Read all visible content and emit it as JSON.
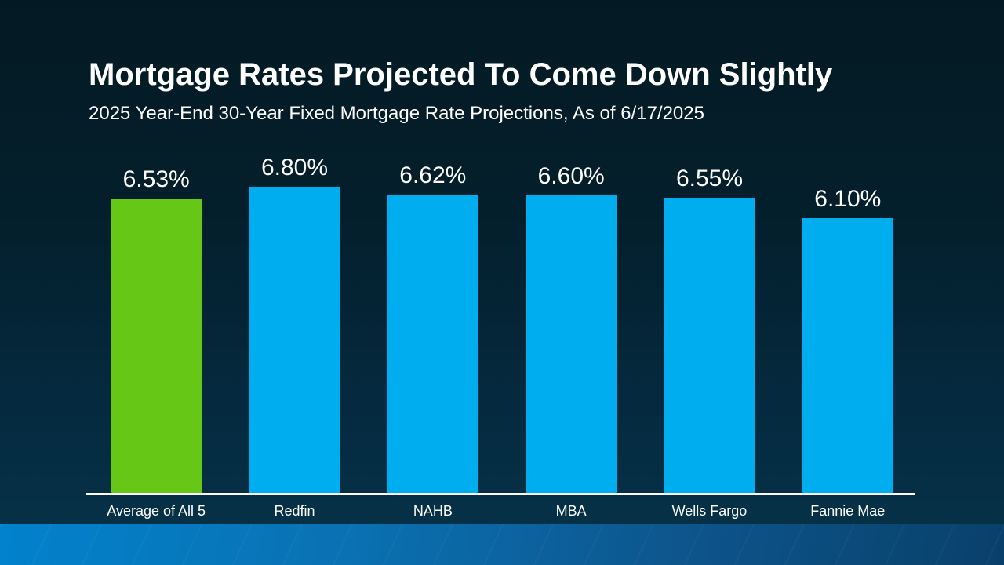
{
  "slide": {
    "title": "Mortgage Rates Projected To Come Down Slightly",
    "subtitle": "2025 Year-End 30-Year Fixed Mortgage Rate Projections, As of 6/17/2025"
  },
  "chart_data": {
    "type": "bar",
    "title": "Mortgage Rates Projected To Come Down Slightly",
    "subtitle": "2025 Year-End 30-Year Fixed Mortgage Rate Projections, As of 6/17/2025",
    "categories": [
      "Average of All 5",
      "Redfin",
      "NAHB",
      "MBA",
      "Wells Fargo",
      "Fannie Mae"
    ],
    "values": [
      6.53,
      6.8,
      6.62,
      6.6,
      6.55,
      6.1
    ],
    "value_labels": [
      "6.53%",
      "6.80%",
      "6.62%",
      "6.60%",
      "6.55%",
      "6.10%"
    ],
    "bar_colors": [
      "#66C716",
      "#00ADEE",
      "#00ADEE",
      "#00ADEE",
      "#00ADEE",
      "#00ADEE"
    ],
    "ylim": [
      0,
      6.8
    ],
    "xlabel": "",
    "ylabel": "",
    "grid": false,
    "legend_position": "none",
    "axis_line_color": "#FFFFFF",
    "value_label_color": "#FFFFFF",
    "category_label_color": "#FFFFFF"
  },
  "colors": {
    "background_top": "#041A23",
    "background_bottom": "#063349",
    "accent_green": "#66C716",
    "accent_blue": "#00ADEE",
    "footer_band_left": "#0282CC",
    "footer_band_right": "#09406A",
    "text": "#FFFFFF"
  }
}
